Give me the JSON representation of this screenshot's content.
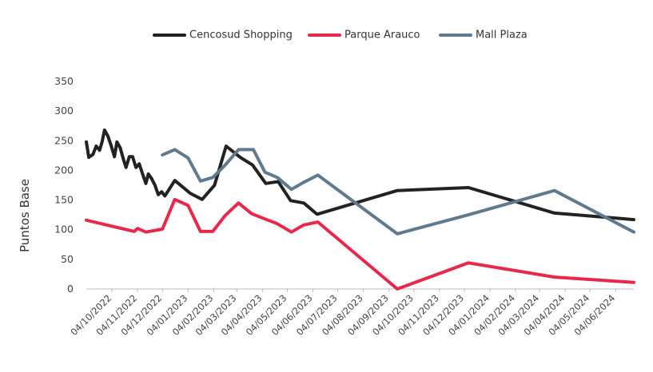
{
  "chart_data": {
    "type": "line",
    "ylabel": "Puntos Base",
    "ylim": [
      0,
      350
    ],
    "yticks": [
      0,
      50,
      100,
      150,
      200,
      250,
      300,
      350
    ],
    "xlim": [
      "2022-09-03",
      "2024-06-26"
    ],
    "xticks": [
      {
        "value": "2022-10-04",
        "label": "04/10/2022"
      },
      {
        "value": "2022-11-04",
        "label": "04/11/2022"
      },
      {
        "value": "2022-12-04",
        "label": "04/12/2022"
      },
      {
        "value": "2023-01-04",
        "label": "04/01/2023"
      },
      {
        "value": "2023-02-04",
        "label": "04/02/2023"
      },
      {
        "value": "2023-03-04",
        "label": "04/03/2023"
      },
      {
        "value": "2023-04-04",
        "label": "04/04/2023"
      },
      {
        "value": "2023-05-04",
        "label": "04/05/2023"
      },
      {
        "value": "2023-06-04",
        "label": "04/06/2023"
      },
      {
        "value": "2023-07-04",
        "label": "04/07/2023"
      },
      {
        "value": "2023-08-04",
        "label": "04/08/2023"
      },
      {
        "value": "2023-09-04",
        "label": "04/09/2023"
      },
      {
        "value": "2023-10-04",
        "label": "04/10/2023"
      },
      {
        "value": "2023-11-04",
        "label": "04/11/2023"
      },
      {
        "value": "2023-12-04",
        "label": "04/12/2023"
      },
      {
        "value": "2024-01-04",
        "label": "04/01/2024"
      },
      {
        "value": "2024-02-04",
        "label": "04/02/2024"
      },
      {
        "value": "2024-03-04",
        "label": "04/03/2024"
      },
      {
        "value": "2024-04-04",
        "label": "04/04/2024"
      },
      {
        "value": "2024-05-04",
        "label": "04/05/2024"
      },
      {
        "value": "2024-06-04",
        "label": "04/06/2024"
      }
    ],
    "series": [
      {
        "name": "Cencosud Shopping",
        "color": "#222222",
        "x": [
          "2022-09-03",
          "2022-09-06",
          "2022-09-11",
          "2022-09-15",
          "2022-09-19",
          "2022-09-22",
          "2022-09-25",
          "2022-09-29",
          "2022-10-03",
          "2022-10-07",
          "2022-10-10",
          "2022-10-14",
          "2022-10-18",
          "2022-10-21",
          "2022-10-25",
          "2022-10-29",
          "2022-11-02",
          "2022-11-06",
          "2022-11-10",
          "2022-11-14",
          "2022-11-17",
          "2022-11-21",
          "2022-11-25",
          "2022-11-29",
          "2022-12-03",
          "2022-12-07",
          "2022-12-19",
          "2023-01-07",
          "2023-01-21",
          "2023-02-05",
          "2023-02-19",
          "2023-03-08",
          "2023-03-23",
          "2023-04-08",
          "2023-04-23",
          "2023-05-08",
          "2023-05-24",
          "2023-06-09",
          "2023-09-14",
          "2023-12-09",
          "2024-03-22",
          "2024-06-26"
        ],
        "values": [
          248,
          222,
          227,
          241,
          234,
          248,
          268,
          258,
          242,
          223,
          248,
          238,
          218,
          205,
          223,
          223,
          205,
          211,
          194,
          178,
          194,
          186,
          175,
          159,
          164,
          157,
          183,
          161,
          151,
          175,
          241,
          222,
          209,
          178,
          181,
          149,
          145,
          126,
          166,
          171,
          128,
          117
        ]
      },
      {
        "name": "Parque Arauco",
        "color": "#e8274a",
        "x": [
          "2022-09-03",
          "2022-10-31",
          "2022-11-04",
          "2022-11-14",
          "2022-12-04",
          "2022-12-19",
          "2023-01-04",
          "2023-01-19",
          "2023-02-03",
          "2023-02-18",
          "2023-03-06",
          "2023-03-22",
          "2023-04-07",
          "2023-04-22",
          "2023-05-09",
          "2023-05-24",
          "2023-06-10",
          "2023-09-14",
          "2023-12-09",
          "2024-03-22",
          "2024-06-26"
        ],
        "values": [
          116,
          97,
          102,
          96,
          101,
          151,
          141,
          97,
          97,
          124,
          145,
          127,
          118,
          110,
          96,
          108,
          113,
          0,
          44,
          20,
          11
        ]
      },
      {
        "name": "Mall Plaza",
        "color": "#5f7a8c",
        "x": [
          "2022-12-04",
          "2022-12-19",
          "2023-01-04",
          "2023-01-19",
          "2023-02-03",
          "2023-02-18",
          "2023-03-06",
          "2023-03-24",
          "2023-04-07",
          "2023-04-22",
          "2023-05-09",
          "2023-05-24",
          "2023-06-10",
          "2023-09-14",
          "2023-12-09",
          "2024-03-22",
          "2024-06-26"
        ],
        "values": [
          226,
          235,
          221,
          182,
          188,
          209,
          235,
          235,
          197,
          188,
          168,
          180,
          192,
          93,
          125,
          166,
          96
        ]
      }
    ]
  }
}
